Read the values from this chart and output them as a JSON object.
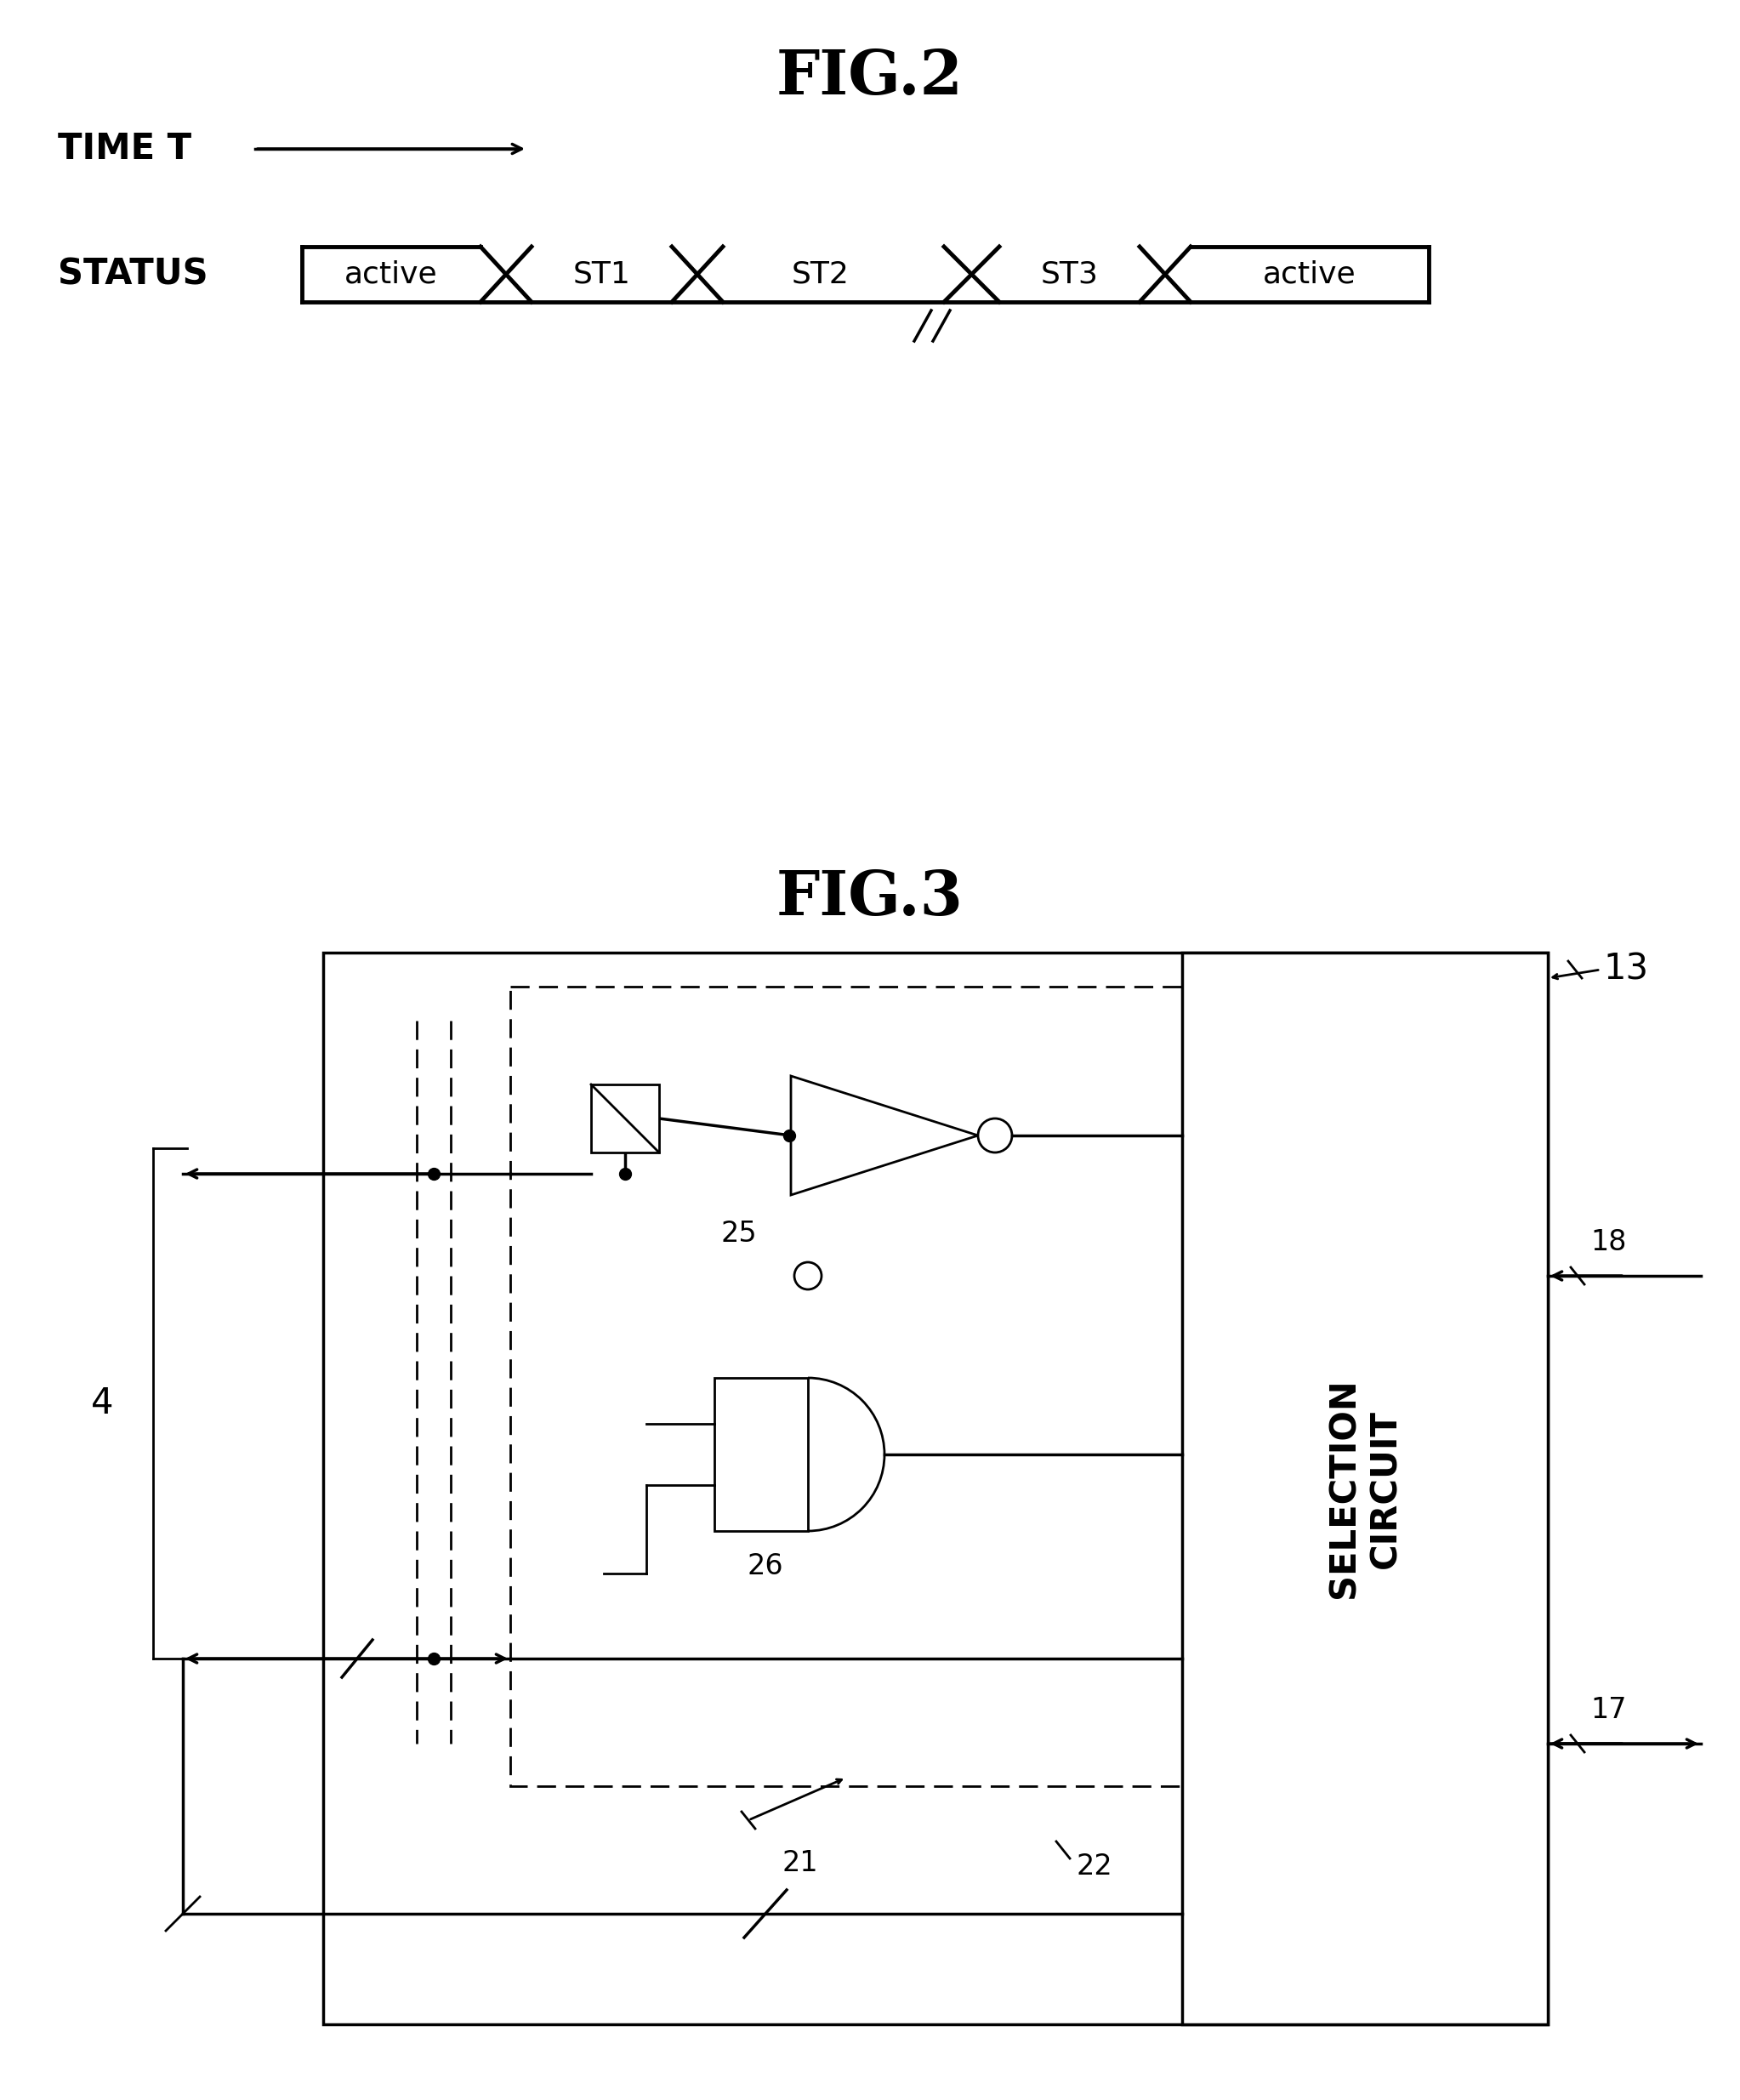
{
  "fig2_title": "FIG.2",
  "fig3_title": "FIG.3",
  "background_color": "#ffffff",
  "fig2": {
    "time_label": "TIME T",
    "status_label": "STATUS",
    "segments": [
      "active",
      "ST1",
      "ST2",
      "ST3",
      "active"
    ]
  },
  "fig3": {
    "label13": "13",
    "label21": "21",
    "label22": "22",
    "label25": "25",
    "label26": "26",
    "label4": "4",
    "label17": "17",
    "label18": "18",
    "selection_text": "SELECTION CIRCUIT"
  }
}
